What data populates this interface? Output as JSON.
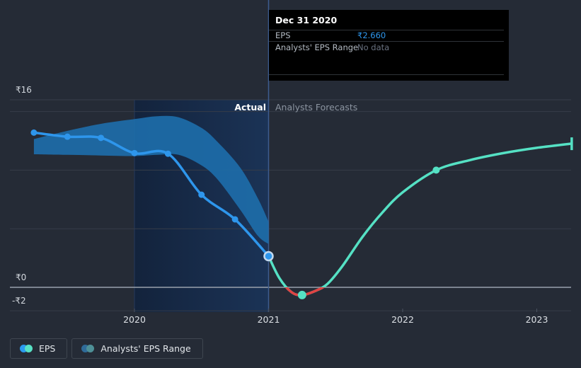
{
  "colors": {
    "background": "#252B36",
    "actual_region_start": "#13233C",
    "actual_region_end": "#1B3356",
    "grid_faint": "#363D49",
    "grid_bright": "#99A2AD",
    "tick": "#4A5260",
    "divider": "#3D5C8F",
    "year_2020_line": "#24395C",
    "eps_line": "#2E96EC",
    "eps_marker_ring": "#C3D9EE",
    "forecast_line": "#55E1C4",
    "forecast_negative": "#E04343",
    "band_fill": "#1D6CA9",
    "tooltip_bg": "#000000",
    "tooltip_value_accent": "#2E96EC",
    "tooltip_value_muted": "#6A7280",
    "legend_eps_left": "#2B9AEF",
    "legend_eps_right": "#58E1C4",
    "legend_range_left": "#2F6B99",
    "legend_range_right": "#4E9097"
  },
  "tooltip": {
    "title": "Dec 31 2020",
    "rows": [
      {
        "label": "EPS",
        "value": "₹2.660",
        "value_type": "accent"
      },
      {
        "label": "Analysts' EPS Range",
        "value": "No data",
        "value_type": "muted"
      }
    ]
  },
  "header": {
    "actual_label": "Actual",
    "forecast_label": "Analysts Forecasts"
  },
  "y_axis": {
    "labels": [
      {
        "text": "₹16",
        "value": 16
      },
      {
        "text": "₹0",
        "value": 0
      },
      {
        "text": "-₹2",
        "value": -2
      }
    ]
  },
  "x_axis": {
    "ticks": [
      {
        "text": "2020",
        "year": 2020
      },
      {
        "text": "2021",
        "year": 2021
      },
      {
        "text": "2022",
        "year": 2022
      },
      {
        "text": "2023",
        "year": 2023
      }
    ]
  },
  "legend": {
    "items": [
      {
        "label": "EPS"
      },
      {
        "label": "Analysts' EPS Range"
      }
    ]
  },
  "chart_data": {
    "type": "line",
    "title": "EPS — Actual vs Analysts Forecasts",
    "currency": "₹",
    "ylabel": "EPS",
    "xlim": [
      2019.07,
      2023.33
    ],
    "ylim": [
      -2.1,
      16.8
    ],
    "x_ticks": [
      2020,
      2021,
      2022,
      2023
    ],
    "gridlines_y": [
      16,
      15,
      10,
      5,
      0,
      -2
    ],
    "zero_line": 0,
    "actual_window": [
      2020,
      2021
    ],
    "selected_point": {
      "x": 2021.0,
      "y": 2.66,
      "label": "Dec 31 2020",
      "eps": "₹2.660"
    },
    "series": [
      {
        "name": "EPS (actual)",
        "color_key": "eps_line",
        "points": [
          [
            2019.25,
            13.2
          ],
          [
            2019.5,
            12.85
          ],
          [
            2019.75,
            12.75
          ],
          [
            2020.0,
            11.45
          ],
          [
            2020.25,
            11.4
          ],
          [
            2020.5,
            7.9
          ],
          [
            2020.75,
            5.8
          ],
          [
            2021.0,
            2.66
          ]
        ],
        "markers": "all"
      },
      {
        "name": "EPS (analysts forecast)",
        "color_key": "forecast_line",
        "negative_color_key": "forecast_negative",
        "points": [
          [
            2021.0,
            2.66
          ],
          [
            2021.08,
            0.8
          ],
          [
            2021.17,
            -0.4
          ],
          [
            2021.25,
            -0.66
          ],
          [
            2021.35,
            -0.3
          ],
          [
            2021.44,
            0.3
          ],
          [
            2021.55,
            1.8
          ],
          [
            2021.7,
            4.3
          ],
          [
            2021.85,
            6.4
          ],
          [
            2022.0,
            8.1
          ],
          [
            2022.25,
            10.0
          ],
          [
            2022.5,
            10.85
          ],
          [
            2022.75,
            11.45
          ],
          [
            2023.0,
            11.9
          ],
          [
            2023.25,
            12.25
          ]
        ],
        "marker_points": [
          [
            2021.25,
            -0.66
          ],
          [
            2022.25,
            10.0
          ]
        ],
        "end_cap": true
      }
    ],
    "band": {
      "name": "Analysts' EPS Range",
      "color_key": "band_fill",
      "points": [
        [
          2019.25,
          12.65,
          11.35
        ],
        [
          2019.5,
          13.35,
          11.3
        ],
        [
          2019.75,
          13.95,
          11.25
        ],
        [
          2020.0,
          14.35,
          11.2
        ],
        [
          2020.17,
          14.6,
          11.3
        ],
        [
          2020.33,
          14.5,
          11.3
        ],
        [
          2020.5,
          13.6,
          10.4
        ],
        [
          2020.62,
          12.4,
          9.2
        ],
        [
          2020.79,
          10.2,
          6.6
        ],
        [
          2020.92,
          7.6,
          4.4
        ],
        [
          2021.0,
          5.6,
          3.7
        ]
      ]
    }
  }
}
